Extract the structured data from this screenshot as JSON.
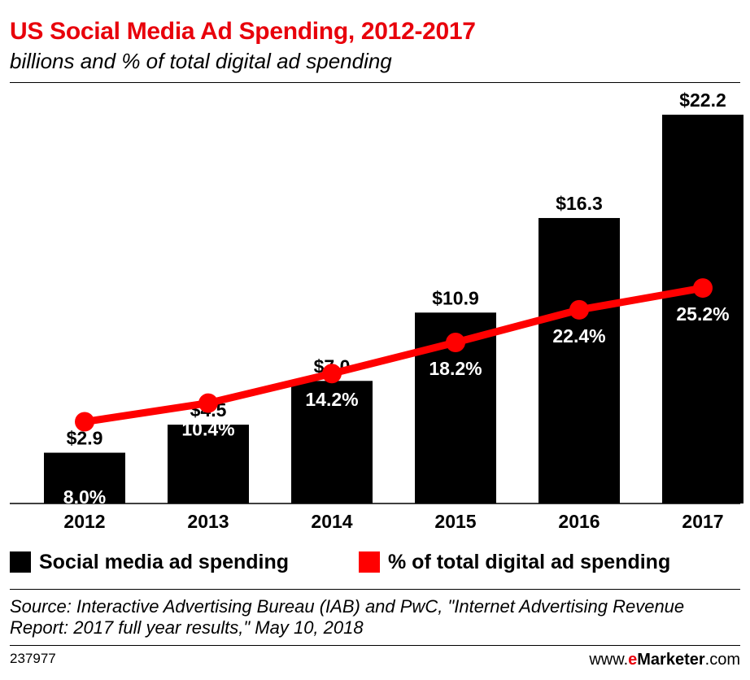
{
  "header": {
    "title": "US Social Media Ad Spending, 2012-2017",
    "subtitle": "billions and % of total digital ad spending"
  },
  "chart_data": {
    "type": "bar",
    "categories": [
      "2012",
      "2013",
      "2014",
      "2015",
      "2016",
      "2017"
    ],
    "series": [
      {
        "name": "Social media ad spending",
        "type": "bar",
        "values": [
          2.9,
          4.5,
          7.0,
          10.9,
          16.3,
          22.2
        ],
        "labels": [
          "$2.9",
          "$4.5",
          "$7.0",
          "$10.9",
          "$16.3",
          "$22.2"
        ],
        "color": "#000000"
      },
      {
        "name": "% of total digital ad spending",
        "type": "line",
        "values": [
          8.0,
          10.4,
          14.2,
          18.2,
          22.4,
          25.2
        ],
        "labels": [
          "8.0%",
          "10.4%",
          "14.2%",
          "18.2%",
          "22.4%",
          "25.2%"
        ],
        "color": "#ff0000"
      }
    ],
    "ylim": [
      0,
      22.2
    ],
    "ylim_secondary": [
      0,
      50
    ],
    "grid": false,
    "legend_position": "bottom"
  },
  "legend": {
    "bar_label": "Social media ad spending",
    "line_label": "% of total digital ad spending"
  },
  "footer": {
    "source": "Source: Interactive Advertising Bureau (IAB) and PwC, \"Internet Advertising Revenue Report: 2017 full year results,\" May 10, 2018",
    "chart_id": "237977",
    "brand_prefix": "www.",
    "brand_e": "e",
    "brand_marketer": "Marketer",
    "brand_suffix": ".com"
  }
}
